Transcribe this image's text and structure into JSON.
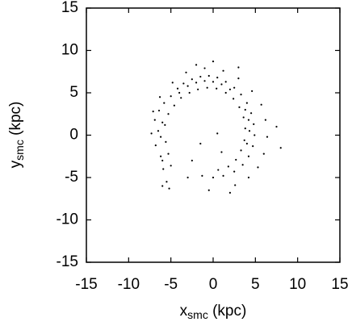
{
  "chart_data": {
    "type": "scatter",
    "xlabel": [
      "x",
      "smc",
      " (kpc)"
    ],
    "ylabel": [
      "y",
      "smc",
      " (kpc)"
    ],
    "color": "#000000",
    "xlim": [
      -15,
      15
    ],
    "ylim": [
      -15,
      15
    ],
    "xticks": [
      -15,
      -10,
      -5,
      0,
      5,
      10,
      15
    ],
    "yticks": [
      -15,
      -10,
      -5,
      0,
      5,
      10,
      15
    ],
    "x": [
      -6.8,
      -6.2,
      -5.9,
      -5.5,
      -5.2,
      -6.5,
      -6.9,
      -6.4,
      -5.8,
      -5.0,
      -4.2,
      -3.5,
      -2.5,
      -1.5,
      -0.5,
      0.5,
      1.5,
      2.5,
      3.3,
      4.0,
      4.5,
      4.8,
      4.9,
      4.7,
      4.2,
      3.5,
      2.5,
      1.2,
      0.0,
      -1.3,
      -5.6,
      -5.3,
      -5.0,
      -5.7,
      -5.3,
      -4.6,
      -3.8,
      -2.8,
      -1.8,
      -0.7,
      0.4,
      1.5,
      2.4,
      3.1,
      3.6,
      3.8,
      3.7,
      3.3,
      2.7,
      1.8,
      0.6,
      -7.3,
      -7.1,
      -6.3,
      -4.8,
      -3.2,
      -1.0,
      1.2,
      3.0,
      4.6,
      5.7,
      6.2,
      6.4,
      6.0,
      5.3,
      4.2,
      2.6,
      7.5,
      8.0,
      -6.0,
      -1.5,
      0.5,
      -2.5,
      1.0,
      -0.5,
      2.0,
      -3.0,
      0.0,
      -2.0,
      3.0,
      -2.0,
      -1.0,
      0.0,
      1.0,
      2.0,
      -3.0,
      -4.0,
      3.8,
      4.2,
      4.3,
      4.0,
      -6.2,
      -6.0,
      -6.0
    ],
    "y": [
      -1.2,
      -2.5,
      -4.0,
      -5.5,
      -6.3,
      0.5,
      1.8,
      2.9,
      3.8,
      4.6,
      5.5,
      6.1,
      6.6,
      6.9,
      7.0,
      6.8,
      6.3,
      5.6,
      4.8,
      3.8,
      2.6,
      1.3,
      0.0,
      -1.3,
      -2.5,
      -3.5,
      -4.3,
      -4.8,
      -5.0,
      -4.8,
      -0.8,
      -2.2,
      -3.6,
      1.2,
      2.5,
      3.5,
      4.4,
      5.0,
      5.4,
      5.6,
      5.5,
      5.0,
      4.3,
      3.3,
      2.1,
      0.8,
      -0.6,
      -1.8,
      -2.9,
      -3.7,
      -4.1,
      0.2,
      2.8,
      4.5,
      6.2,
      7.4,
      7.9,
      7.6,
      6.7,
      5.2,
      3.6,
      1.8,
      -0.2,
      -2.2,
      -3.8,
      -5.0,
      -5.9,
      1.0,
      -1.5,
      -6.0,
      -1.0,
      0.2,
      -3.0,
      -2.0,
      -6.5,
      -6.8,
      -5.0,
      8.7,
      8.3,
      8.0,
      6.2,
      6.4,
      6.3,
      6.0,
      5.4,
      5.8,
      5.0,
      3.0,
      1.8,
      0.5,
      -1.0,
      -0.2,
      1.5,
      -3.0
    ]
  }
}
